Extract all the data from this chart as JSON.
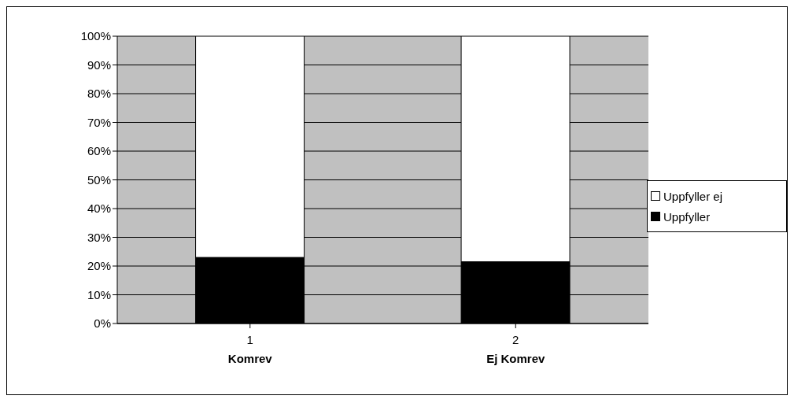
{
  "chart_data": {
    "type": "bar",
    "stacked": true,
    "categories": [
      "1",
      "2"
    ],
    "series": [
      {
        "name": "Uppfyller",
        "color": "#000000",
        "values": [
          23,
          21.5
        ]
      },
      {
        "name": "Uppfyller ej",
        "color": "#ffffff",
        "values": [
          77,
          78.5
        ]
      }
    ],
    "ylim": [
      0,
      100
    ],
    "yticks": [
      {
        "value": 0,
        "label": "0%"
      },
      {
        "value": 10,
        "label": "10%"
      },
      {
        "value": 20,
        "label": "20%"
      },
      {
        "value": 30,
        "label": "30%"
      },
      {
        "value": 40,
        "label": "40%"
      },
      {
        "value": 50,
        "label": "50%"
      },
      {
        "value": 60,
        "label": "60%"
      },
      {
        "value": 70,
        "label": "70%"
      },
      {
        "value": 80,
        "label": "80%"
      },
      {
        "value": 90,
        "label": "90%"
      },
      {
        "value": 100,
        "label": "100%"
      }
    ],
    "grid": "y",
    "legend": "right",
    "annotations": [
      "Komrev",
      "Ej Komrev"
    ]
  }
}
